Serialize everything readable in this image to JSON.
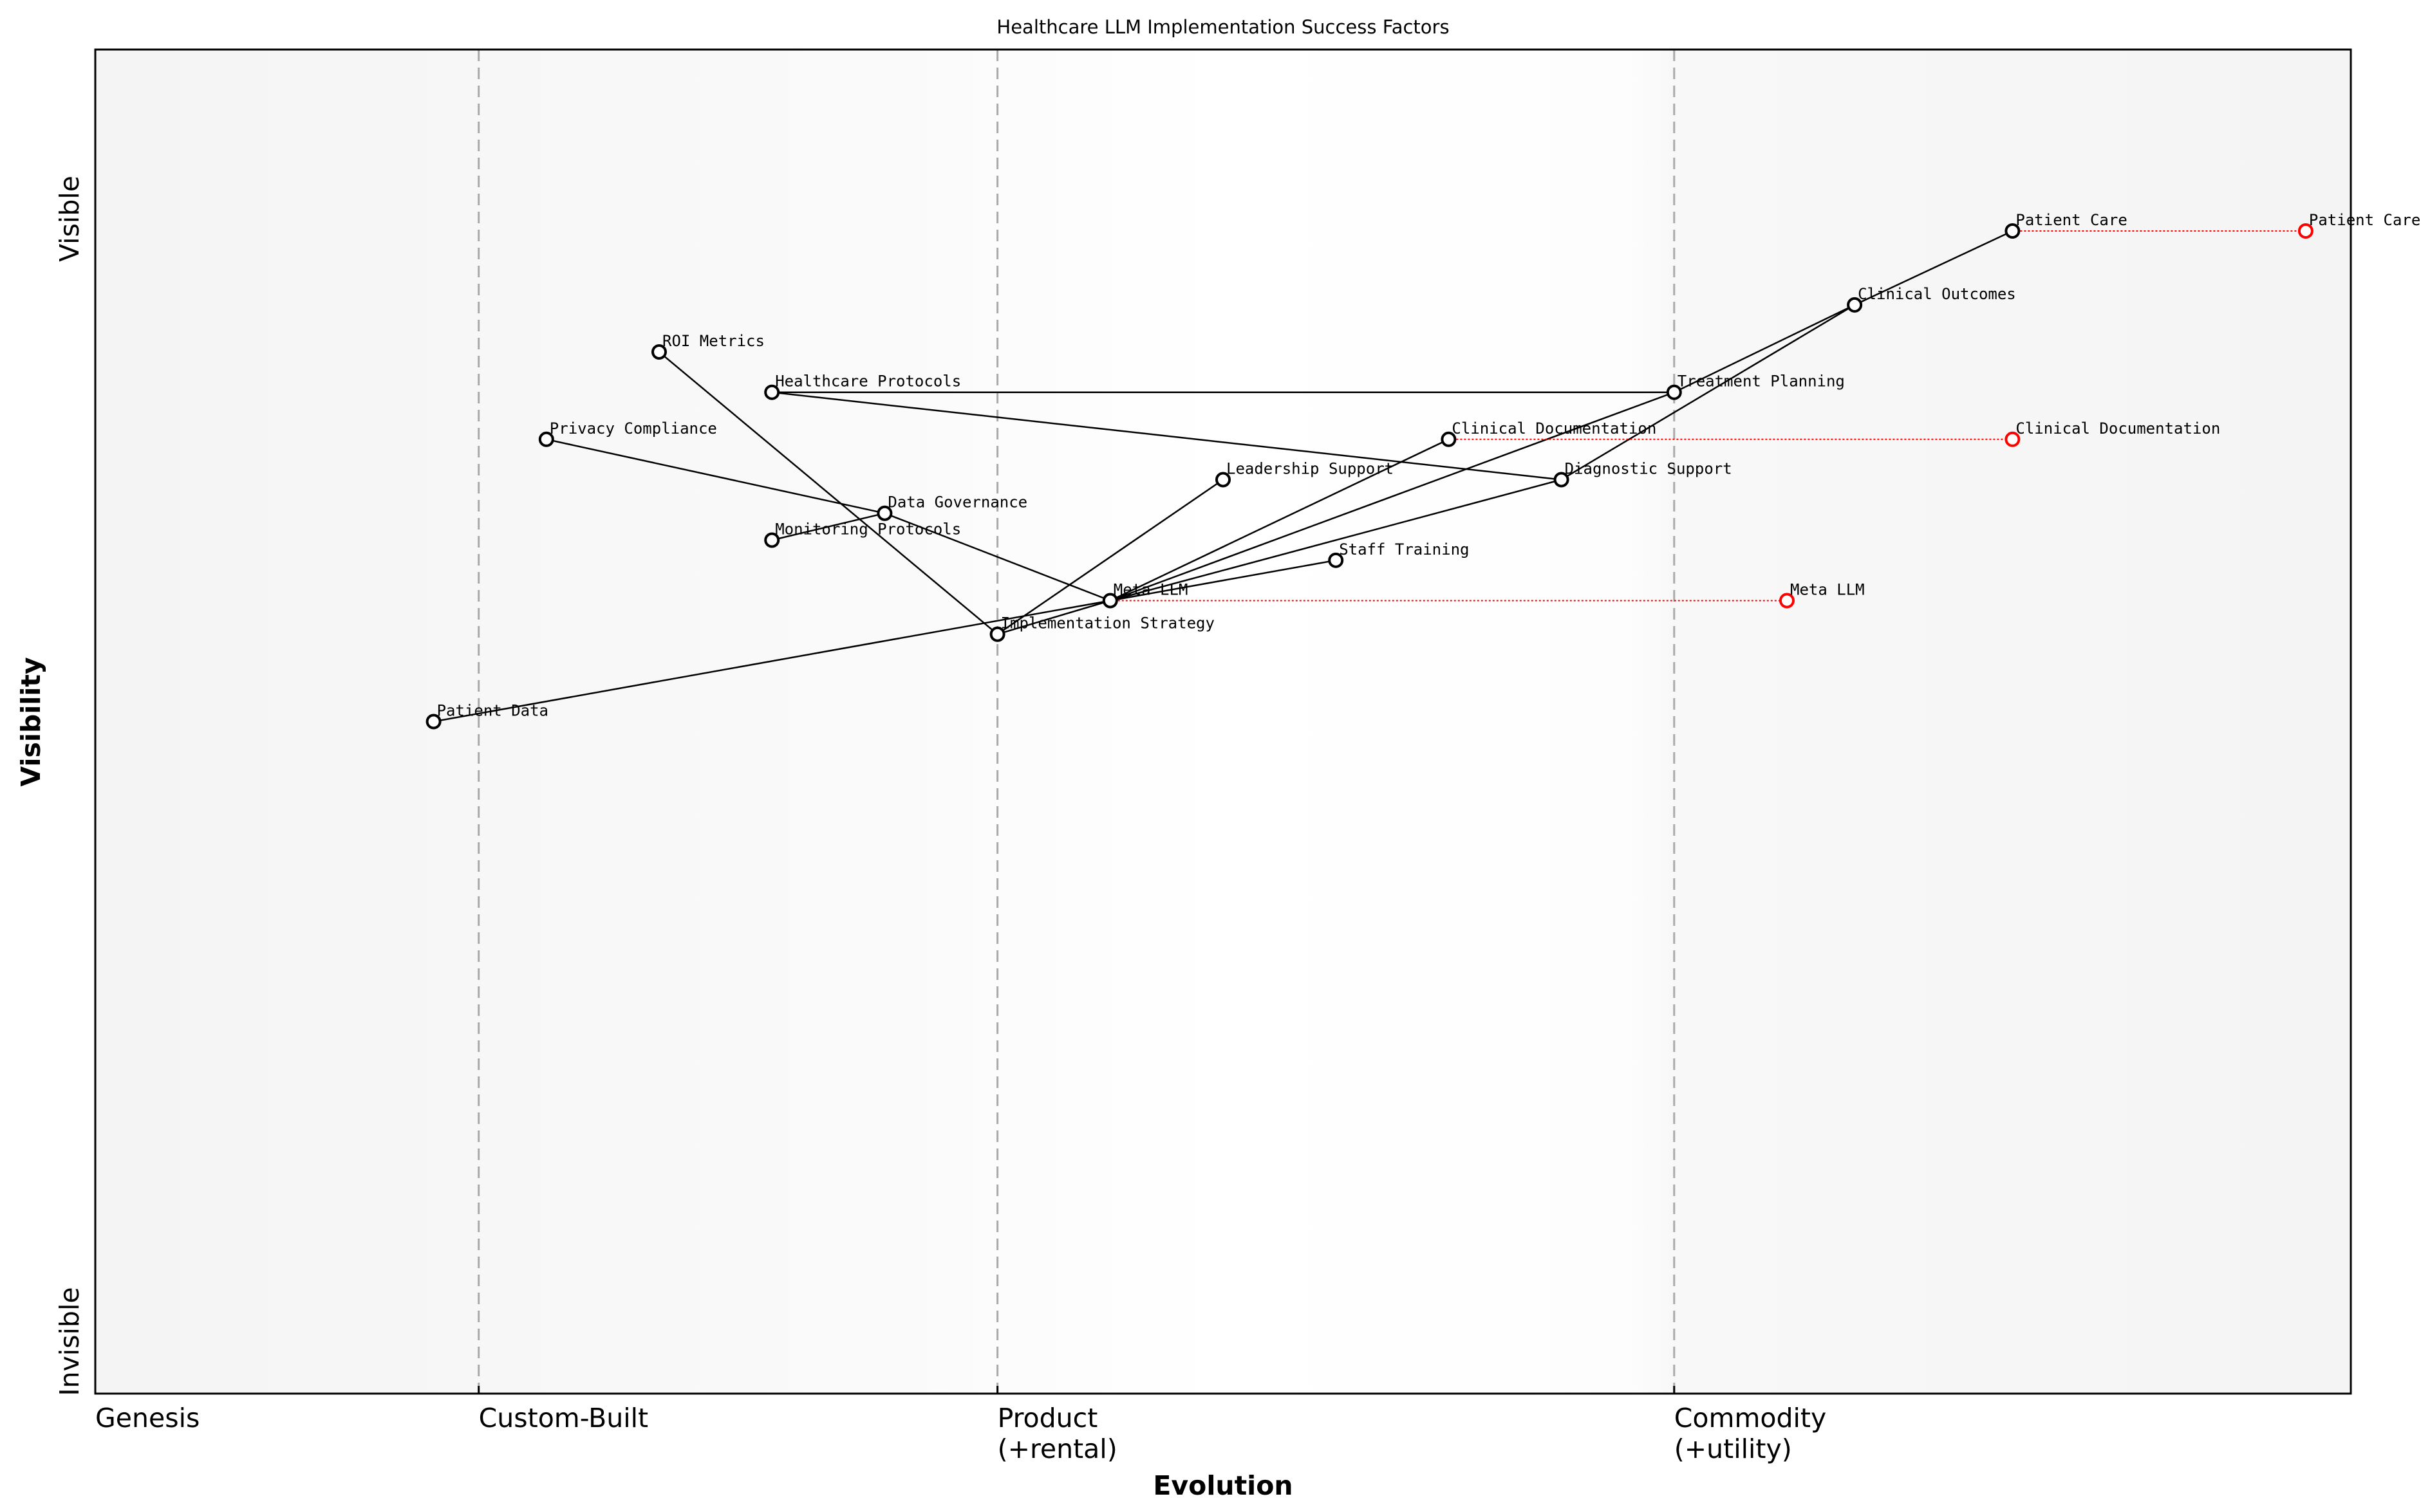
{
  "title": "Healthcare LLM Implementation Success Factors",
  "x_axis": {
    "label": "Evolution",
    "range": [
      0,
      1
    ],
    "stages": [
      {
        "label": "Genesis",
        "at": 0.0,
        "line": false
      },
      {
        "label": "Custom-Built",
        "at": 0.17,
        "line": true
      },
      {
        "label": "Product\n(+rental)",
        "at": 0.4,
        "line": true
      },
      {
        "label": "Commodity\n(+utility)",
        "at": 0.7,
        "line": true
      }
    ]
  },
  "y_axis": {
    "label": "Visibility",
    "range": [
      0,
      1
    ],
    "top_label": "Visible",
    "bottom_label": "Invisible"
  },
  "colors": {
    "node": "#000000",
    "evolved": "#ff0000",
    "edge": "#000000",
    "stage_line": "#aaaaaa"
  },
  "chart_data": {
    "type": "wardley-map",
    "nodes": [
      {
        "name": "Patient Care",
        "evolution": 0.85,
        "visibility": 0.865
      },
      {
        "name": "Clinical Outcomes",
        "evolution": 0.78,
        "visibility": 0.81
      },
      {
        "name": "Treatment Planning",
        "evolution": 0.7,
        "visibility": 0.745
      },
      {
        "name": "Clinical Documentation",
        "evolution": 0.6,
        "visibility": 0.71
      },
      {
        "name": "Diagnostic Support",
        "evolution": 0.65,
        "visibility": 0.68
      },
      {
        "name": "Leadership Support",
        "evolution": 0.5,
        "visibility": 0.68
      },
      {
        "name": "Staff Training",
        "evolution": 0.55,
        "visibility": 0.62
      },
      {
        "name": "Meta LLM",
        "evolution": 0.45,
        "visibility": 0.59
      },
      {
        "name": "Implementation Strategy",
        "evolution": 0.4,
        "visibility": 0.565
      },
      {
        "name": "Patient Data",
        "evolution": 0.15,
        "visibility": 0.5
      },
      {
        "name": "ROI Metrics",
        "evolution": 0.25,
        "visibility": 0.775
      },
      {
        "name": "Healthcare Protocols",
        "evolution": 0.3,
        "visibility": 0.745
      },
      {
        "name": "Privacy Compliance",
        "evolution": 0.2,
        "visibility": 0.71
      },
      {
        "name": "Data Governance",
        "evolution": 0.35,
        "visibility": 0.655
      },
      {
        "name": "Monitoring Protocols",
        "evolution": 0.3,
        "visibility": 0.635
      }
    ],
    "edges": [
      [
        "Patient Care",
        "Clinical Outcomes"
      ],
      [
        "Clinical Outcomes",
        "Treatment Planning"
      ],
      [
        "Clinical Outcomes",
        "Diagnostic Support"
      ],
      [
        "Treatment Planning",
        "Meta LLM"
      ],
      [
        "Clinical Documentation",
        "Meta LLM"
      ],
      [
        "Diagnostic Support",
        "Meta LLM"
      ],
      [
        "Staff Training",
        "Meta LLM"
      ],
      [
        "Leadership Support",
        "Implementation Strategy"
      ],
      [
        "Implementation Strategy",
        "Meta LLM"
      ],
      [
        "ROI Metrics",
        "Implementation Strategy"
      ],
      [
        "Data Governance",
        "Meta LLM"
      ],
      [
        "Privacy Compliance",
        "Data Governance"
      ],
      [
        "Monitoring Protocols",
        "Data Governance"
      ],
      [
        "Patient Data",
        "Meta LLM"
      ],
      [
        "Healthcare Protocols",
        "Treatment Planning"
      ],
      [
        "Healthcare Protocols",
        "Diagnostic Support"
      ]
    ],
    "evolutions": [
      {
        "name": "Patient Care",
        "from": 0.85,
        "to": 0.98,
        "visibility": 0.865
      },
      {
        "name": "Clinical Documentation",
        "from": 0.6,
        "to": 0.85,
        "visibility": 0.71
      },
      {
        "name": "Meta LLM",
        "from": 0.45,
        "to": 0.75,
        "visibility": 0.59
      }
    ]
  }
}
